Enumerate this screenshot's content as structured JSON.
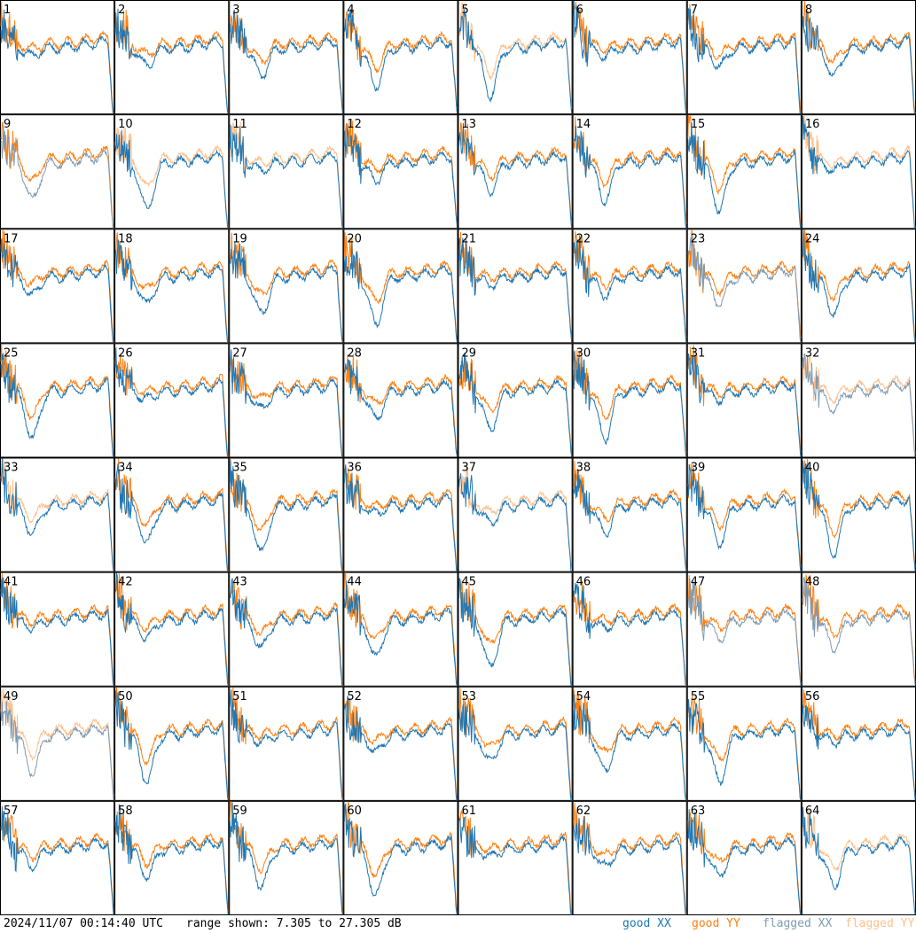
{
  "chart_data": {
    "type": "line",
    "layout": "8x8 grid of antenna spectra",
    "panels": [
      {
        "label": "1",
        "xx_state": "good",
        "yy_state": "good"
      },
      {
        "label": "2",
        "xx_state": "good",
        "yy_state": "good"
      },
      {
        "label": "3",
        "xx_state": "good",
        "yy_state": "good"
      },
      {
        "label": "4",
        "xx_state": "good",
        "yy_state": "good"
      },
      {
        "label": "5",
        "xx_state": "good",
        "yy_state": "flagged"
      },
      {
        "label": "6",
        "xx_state": "good",
        "yy_state": "good"
      },
      {
        "label": "7",
        "xx_state": "good",
        "yy_state": "good"
      },
      {
        "label": "8",
        "xx_state": "good",
        "yy_state": "good"
      },
      {
        "label": "9",
        "xx_state": "flagged",
        "yy_state": "good"
      },
      {
        "label": "10",
        "xx_state": "good",
        "yy_state": "flagged"
      },
      {
        "label": "11",
        "xx_state": "good",
        "yy_state": "flagged"
      },
      {
        "label": "12",
        "xx_state": "good",
        "yy_state": "good"
      },
      {
        "label": "13",
        "xx_state": "good",
        "yy_state": "good"
      },
      {
        "label": "14",
        "xx_state": "good",
        "yy_state": "good"
      },
      {
        "label": "15",
        "xx_state": "good",
        "yy_state": "good"
      },
      {
        "label": "16",
        "xx_state": "good",
        "yy_state": "flagged"
      },
      {
        "label": "17",
        "xx_state": "good",
        "yy_state": "good"
      },
      {
        "label": "18",
        "xx_state": "good",
        "yy_state": "good"
      },
      {
        "label": "19",
        "xx_state": "good",
        "yy_state": "good"
      },
      {
        "label": "20",
        "xx_state": "good",
        "yy_state": "good"
      },
      {
        "label": "21",
        "xx_state": "good",
        "yy_state": "good"
      },
      {
        "label": "22",
        "xx_state": "good",
        "yy_state": "good"
      },
      {
        "label": "23",
        "xx_state": "flagged",
        "yy_state": "good"
      },
      {
        "label": "24",
        "xx_state": "good",
        "yy_state": "good"
      },
      {
        "label": "25",
        "xx_state": "good",
        "yy_state": "good"
      },
      {
        "label": "26",
        "xx_state": "good",
        "yy_state": "good"
      },
      {
        "label": "27",
        "xx_state": "good",
        "yy_state": "good"
      },
      {
        "label": "28",
        "xx_state": "good",
        "yy_state": "good"
      },
      {
        "label": "29",
        "xx_state": "good",
        "yy_state": "good"
      },
      {
        "label": "30",
        "xx_state": "good",
        "yy_state": "good"
      },
      {
        "label": "31",
        "xx_state": "good",
        "yy_state": "good"
      },
      {
        "label": "32",
        "xx_state": "flagged",
        "yy_state": "flagged"
      },
      {
        "label": "33",
        "xx_state": "good",
        "yy_state": "flagged"
      },
      {
        "label": "34",
        "xx_state": "good",
        "yy_state": "good"
      },
      {
        "label": "35",
        "xx_state": "good",
        "yy_state": "good"
      },
      {
        "label": "36",
        "xx_state": "good",
        "yy_state": "good"
      },
      {
        "label": "37",
        "xx_state": "good",
        "yy_state": "flagged"
      },
      {
        "label": "38",
        "xx_state": "good",
        "yy_state": "good"
      },
      {
        "label": "39",
        "xx_state": "good",
        "yy_state": "good"
      },
      {
        "label": "40",
        "xx_state": "good",
        "yy_state": "good"
      },
      {
        "label": "41",
        "xx_state": "good",
        "yy_state": "good"
      },
      {
        "label": "42",
        "xx_state": "good",
        "yy_state": "good"
      },
      {
        "label": "43",
        "xx_state": "good",
        "yy_state": "good"
      },
      {
        "label": "44",
        "xx_state": "good",
        "yy_state": "good"
      },
      {
        "label": "45",
        "xx_state": "good",
        "yy_state": "good"
      },
      {
        "label": "46",
        "xx_state": "good",
        "yy_state": "good"
      },
      {
        "label": "47",
        "xx_state": "flagged",
        "yy_state": "good"
      },
      {
        "label": "48",
        "xx_state": "flagged",
        "yy_state": "good"
      },
      {
        "label": "49",
        "xx_state": "flagged",
        "yy_state": "flagged"
      },
      {
        "label": "50",
        "xx_state": "good",
        "yy_state": "good"
      },
      {
        "label": "51",
        "xx_state": "good",
        "yy_state": "good"
      },
      {
        "label": "52",
        "xx_state": "good",
        "yy_state": "good"
      },
      {
        "label": "53",
        "xx_state": "good",
        "yy_state": "good"
      },
      {
        "label": "54",
        "xx_state": "good",
        "yy_state": "good"
      },
      {
        "label": "55",
        "xx_state": "good",
        "yy_state": "good"
      },
      {
        "label": "56",
        "xx_state": "good",
        "yy_state": "good"
      },
      {
        "label": "57",
        "xx_state": "good",
        "yy_state": "good"
      },
      {
        "label": "58",
        "xx_state": "good",
        "yy_state": "good"
      },
      {
        "label": "59",
        "xx_state": "good",
        "yy_state": "good"
      },
      {
        "label": "60",
        "xx_state": "good",
        "yy_state": "good"
      },
      {
        "label": "61",
        "xx_state": "good",
        "yy_state": "good"
      },
      {
        "label": "62",
        "xx_state": "good",
        "yy_state": "good"
      },
      {
        "label": "63",
        "xx_state": "good",
        "yy_state": "good"
      },
      {
        "label": "64",
        "xx_state": "good",
        "yy_state": "flagged"
      }
    ],
    "ylim": [
      7.305,
      27.305
    ],
    "yunit": "dB",
    "grid": false,
    "legend": [
      {
        "name": "good XX",
        "color": "#1f77b4"
      },
      {
        "name": "good YY",
        "color": "#ff7f0e"
      },
      {
        "name": "flagged XX",
        "color": "#7f9bb3"
      },
      {
        "name": "flagged YY",
        "color": "#ffbf8a"
      }
    ]
  },
  "footer": {
    "timestamp": "2024/11/07 00:14:40 UTC",
    "range_text": "range shown: 7.305 to 27.305 dB"
  }
}
